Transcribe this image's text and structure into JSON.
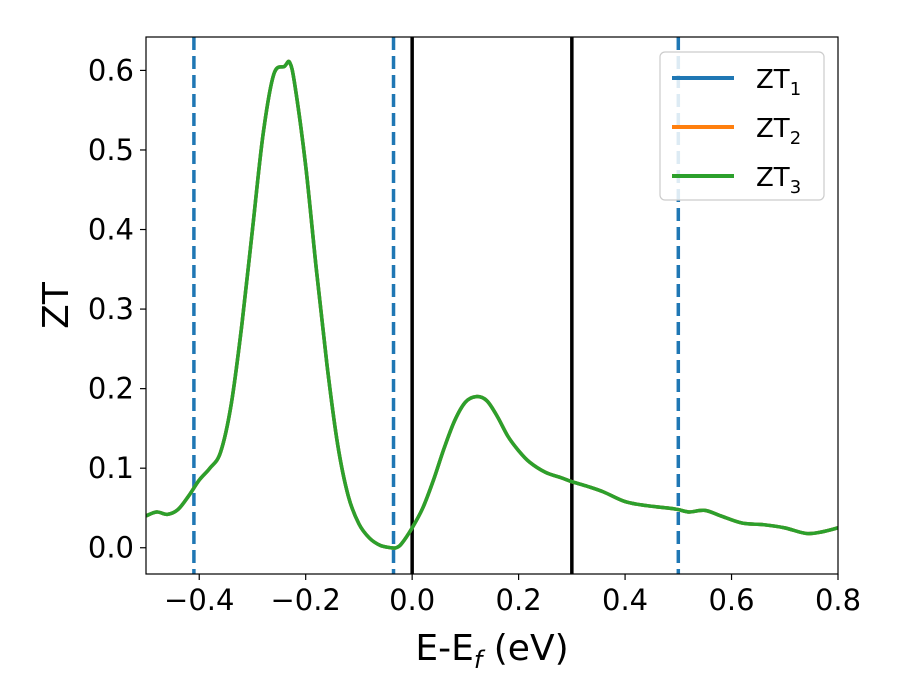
{
  "chart_data": {
    "type": "line",
    "title": "",
    "xlabel": "E-E",
    "xlabel_sub": "f",
    "xlabel_unit": " (eV)",
    "ylabel": "ZT",
    "xlim": [
      -0.5,
      0.8
    ],
    "ylim": [
      -0.033,
      0.642
    ],
    "xticks": [
      -0.4,
      -0.2,
      0.0,
      0.2,
      0.4,
      0.6,
      0.8
    ],
    "xtick_labels": [
      "−0.4",
      "−0.2",
      "0.0",
      "0.2",
      "0.4",
      "0.6",
      "0.8"
    ],
    "yticks": [
      0.0,
      0.1,
      0.2,
      0.3,
      0.4,
      0.5,
      0.6
    ],
    "ytick_labels": [
      "0.0",
      "0.1",
      "0.2",
      "0.3",
      "0.4",
      "0.5",
      "0.6"
    ],
    "grid": false,
    "legend_position": "top-right",
    "colors": {
      "zt1": "#1f77b4",
      "zt2": "#ff7f0e",
      "zt3": "#2ca02c",
      "vline": "#000000"
    },
    "series": [
      {
        "name": "ZT",
        "sub": "1",
        "color": "#1f77b4"
      },
      {
        "name": "ZT",
        "sub": "2",
        "color": "#ff7f0e"
      },
      {
        "name": "ZT",
        "sub": "3",
        "color": "#2ca02c"
      }
    ],
    "curve": {
      "x": [
        -0.5,
        -0.48,
        -0.46,
        -0.44,
        -0.42,
        -0.4,
        -0.38,
        -0.36,
        -0.34,
        -0.32,
        -0.3,
        -0.28,
        -0.26,
        -0.24,
        -0.23,
        -0.22,
        -0.2,
        -0.18,
        -0.16,
        -0.14,
        -0.12,
        -0.1,
        -0.08,
        -0.06,
        -0.04,
        -0.03,
        -0.02,
        0.0,
        0.02,
        0.04,
        0.06,
        0.08,
        0.1,
        0.12,
        0.14,
        0.16,
        0.18,
        0.2,
        0.22,
        0.25,
        0.28,
        0.3,
        0.33,
        0.36,
        0.4,
        0.44,
        0.48,
        0.5,
        0.52,
        0.55,
        0.58,
        0.62,
        0.66,
        0.7,
        0.74,
        0.77,
        0.8
      ],
      "y": [
        0.04,
        0.045,
        0.042,
        0.048,
        0.065,
        0.085,
        0.1,
        0.12,
        0.18,
        0.28,
        0.4,
        0.52,
        0.595,
        0.605,
        0.61,
        0.58,
        0.48,
        0.35,
        0.23,
        0.13,
        0.065,
        0.03,
        0.012,
        0.003,
        0.0,
        0.0,
        0.005,
        0.025,
        0.05,
        0.085,
        0.125,
        0.16,
        0.183,
        0.19,
        0.185,
        0.165,
        0.14,
        0.122,
        0.108,
        0.095,
        0.088,
        0.083,
        0.077,
        0.07,
        0.058,
        0.053,
        0.05,
        0.048,
        0.045,
        0.047,
        0.04,
        0.031,
        0.029,
        0.025,
        0.018,
        0.02,
        0.025
      ]
    },
    "vlines_dashed": [
      -0.41,
      -0.035,
      0.5
    ],
    "vlines_solid": [
      0.0,
      0.3
    ]
  }
}
